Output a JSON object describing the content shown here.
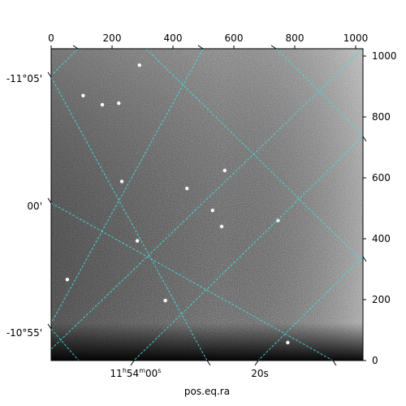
{
  "chart_data": {
    "type": "image",
    "colormap": "gray",
    "pixel_axes": {
      "top_x": {
        "ticks": [
          0,
          200,
          400,
          600,
          800,
          1000
        ],
        "range": [
          0,
          1024
        ]
      },
      "right_y": {
        "ticks": [
          0,
          200,
          400,
          600,
          800,
          1000
        ],
        "range": [
          0,
          1024
        ]
      }
    },
    "world_axes": {
      "xlabel": "pos.eq.ra",
      "ra_ticks": [
        "11h54m00s",
        "20s"
      ],
      "dec_ticks": [
        "-11°05'",
        "00'",
        "-10°55'"
      ]
    },
    "grid": {
      "shown": true,
      "color": "#40e0e0",
      "style": "dashed"
    },
    "bright_sources": [
      {
        "x": 290,
        "y": 970
      },
      {
        "x": 105,
        "y": 870
      },
      {
        "x": 222,
        "y": 845
      },
      {
        "x": 168,
        "y": 840
      },
      {
        "x": 232,
        "y": 588
      },
      {
        "x": 570,
        "y": 624
      },
      {
        "x": 446,
        "y": 565
      },
      {
        "x": 530,
        "y": 493
      },
      {
        "x": 283,
        "y": 393
      },
      {
        "x": 745,
        "y": 460
      },
      {
        "x": 375,
        "y": 197
      },
      {
        "x": 53,
        "y": 266
      },
      {
        "x": 777,
        "y": 59
      },
      {
        "x": 560,
        "y": 440
      }
    ]
  }
}
